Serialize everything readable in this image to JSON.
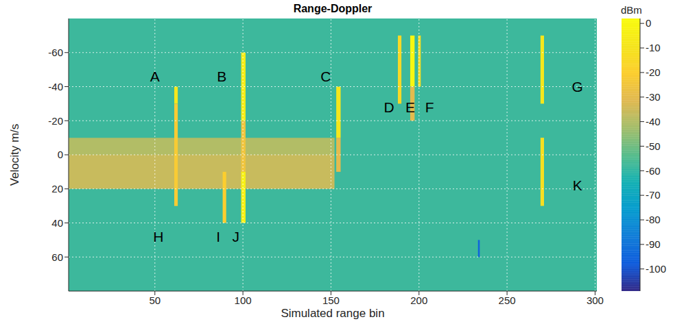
{
  "chart_data": {
    "type": "heatmap",
    "title": "Range-Doppler",
    "x_label": "Simulated range bin",
    "y_label": "Velocity m/s",
    "xlim": [
      1,
      301
    ],
    "xticks": [
      50,
      100,
      150,
      200,
      250,
      300
    ],
    "ylim": [
      -80,
      80
    ],
    "yticks": [
      -60,
      -40,
      -20,
      0,
      20,
      40,
      60
    ],
    "grid": true,
    "cells": [
      {
        "x0": 1,
        "x1": 301,
        "y0": -80,
        "y1": 80,
        "value": -58
      },
      {
        "x0": 1,
        "x1": 152,
        "y0": -10,
        "y1": 0,
        "value": -40
      },
      {
        "x0": 1,
        "x1": 152,
        "y0": 0,
        "y1": 20,
        "value": -36
      },
      {
        "x0": 61,
        "x1": 63,
        "y0": -40,
        "y1": -30,
        "value": -8
      },
      {
        "x0": 61,
        "x1": 63,
        "y0": -30,
        "y1": 30,
        "value": -22
      },
      {
        "x0": 88.5,
        "x1": 90.5,
        "y0": 10,
        "y1": 40,
        "value": -20
      },
      {
        "x0": 99,
        "x1": 101.5,
        "y0": -60,
        "y1": -20,
        "value": -5
      },
      {
        "x0": 99,
        "x1": 101.5,
        "y0": -20,
        "y1": 10,
        "value": -25
      },
      {
        "x0": 99,
        "x1": 101.5,
        "y0": 10,
        "y1": 40,
        "value": -3
      },
      {
        "x0": 153,
        "x1": 155.5,
        "y0": -40,
        "y1": -10,
        "value": -8
      },
      {
        "x0": 153,
        "x1": 155.5,
        "y0": -10,
        "y1": 10,
        "value": -30
      },
      {
        "x0": 188,
        "x1": 190,
        "y0": -70,
        "y1": -30,
        "value": -15
      },
      {
        "x0": 195,
        "x1": 197.5,
        "y0": -70,
        "y1": -40,
        "value": 0
      },
      {
        "x0": 195,
        "x1": 197.5,
        "y0": -40,
        "y1": -20,
        "value": -30
      },
      {
        "x0": 199.5,
        "x1": 201,
        "y0": -70,
        "y1": -40,
        "value": -12
      },
      {
        "x0": 269,
        "x1": 271,
        "y0": -70,
        "y1": -30,
        "value": -8
      },
      {
        "x0": 269,
        "x1": 271,
        "y0": -10,
        "y1": 30,
        "value": -12
      },
      {
        "x0": 233.5,
        "x1": 234.5,
        "y0": 50,
        "y1": 60,
        "value": -95
      }
    ],
    "annotations": [
      {
        "x": 50,
        "y": -46,
        "text": "A"
      },
      {
        "x": 88,
        "y": -46,
        "text": "B"
      },
      {
        "x": 147,
        "y": -46,
        "text": "C"
      },
      {
        "x": 183,
        "y": -28,
        "text": "D"
      },
      {
        "x": 195,
        "y": -28,
        "text": "E"
      },
      {
        "x": 206,
        "y": -28,
        "text": "F"
      },
      {
        "x": 290,
        "y": -40,
        "text": "G"
      },
      {
        "x": 52,
        "y": 48,
        "text": "H"
      },
      {
        "x": 86,
        "y": 48,
        "text": "I"
      },
      {
        "x": 96,
        "y": 48,
        "text": "J"
      },
      {
        "x": 290,
        "y": 18,
        "text": "K"
      }
    ],
    "colorbar": {
      "label": "dBm",
      "range": [
        -109,
        2
      ],
      "ticks": [
        0,
        -10,
        -20,
        -30,
        -40,
        -50,
        -60,
        -70,
        -80,
        -90,
        -100
      ]
    }
  }
}
